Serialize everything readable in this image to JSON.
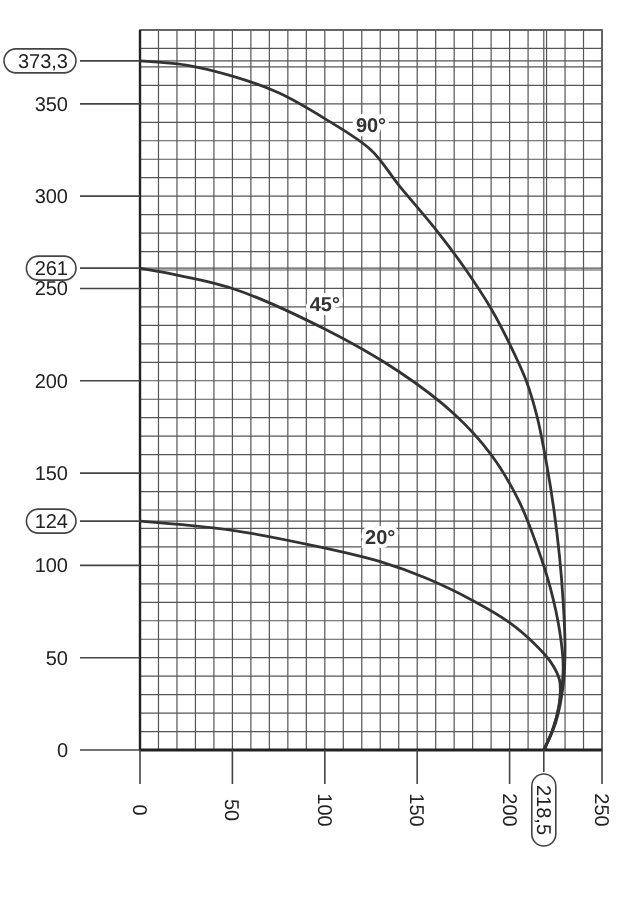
{
  "chart_data": {
    "type": "line",
    "xlim": [
      0,
      250
    ],
    "ylim": [
      0,
      390
    ],
    "grid": true,
    "marker": "none",
    "line_style": "solid",
    "xticks": [
      0,
      {
        "value": 10,
        "label": null
      },
      {
        "value": 20,
        "label": null
      },
      {
        "value": 30,
        "label": null
      },
      {
        "value": 40,
        "label": null
      },
      50,
      {
        "value": 60,
        "label": null
      },
      {
        "value": 70,
        "label": null
      },
      {
        "value": 80,
        "label": null
      },
      {
        "value": 90,
        "label": null
      },
      100,
      {
        "value": 110,
        "label": null
      },
      {
        "value": 120,
        "label": null
      },
      {
        "value": 130,
        "label": null
      },
      {
        "value": 140,
        "label": null
      },
      150,
      {
        "value": 160,
        "label": null
      },
      {
        "value": 170,
        "label": null
      },
      {
        "value": 180,
        "label": null
      },
      {
        "value": 190,
        "label": null
      },
      200,
      {
        "value": 210,
        "label": null
      },
      {
        "value": 218.5,
        "label": "218,5"
      },
      {
        "value": 220,
        "label": null
      },
      {
        "value": 230,
        "label": null
      },
      {
        "value": 240,
        "label": null
      },
      250
    ],
    "yticks": [
      0,
      {
        "value": 10,
        "label": null
      },
      {
        "value": 20,
        "label": null
      },
      {
        "value": 30,
        "label": null
      },
      {
        "value": 40,
        "label": null
      },
      50,
      {
        "value": 60,
        "label": null
      },
      {
        "value": 70,
        "label": null
      },
      {
        "value": 80,
        "label": null
      },
      {
        "value": 90,
        "label": null
      },
      100,
      {
        "value": 110,
        "label": null
      },
      {
        "value": 120,
        "label": null
      },
      {
        "value": 124,
        "label": "124"
      },
      {
        "value": 130,
        "label": null
      },
      {
        "value": 140,
        "label": null
      },
      150,
      {
        "value": 160,
        "label": null
      },
      {
        "value": 170,
        "label": null
      },
      {
        "value": 180,
        "label": null
      },
      {
        "value": 190,
        "label": null
      },
      200,
      {
        "value": 210,
        "label": null
      },
      {
        "value": 220,
        "label": null
      },
      {
        "value": 230,
        "label": null
      },
      {
        "value": 240,
        "label": null
      },
      250,
      {
        "value": 260,
        "label": null
      },
      {
        "value": 261,
        "label": "261"
      },
      {
        "value": 270,
        "label": null
      },
      {
        "value": 280,
        "label": null
      },
      {
        "value": 290,
        "label": null
      },
      300,
      {
        "value": 310,
        "label": null
      },
      {
        "value": 320,
        "label": null
      },
      {
        "value": 330,
        "label": null
      },
      {
        "value": 340,
        "label": null
      },
      350,
      {
        "value": 360,
        "label": null
      },
      {
        "value": 370,
        "label": null
      },
      {
        "value": 373.3,
        "label": "373,3"
      },
      {
        "value": 380,
        "label": null
      },
      {
        "value": 390,
        "label": null
      }
    ],
    "series": [
      {
        "name": "90°",
        "color": "#333333",
        "x": [
          0,
          25,
          50,
          75,
          100,
          125,
          140,
          160,
          175,
          190,
          200,
          209,
          215,
          220,
          224,
          227,
          229,
          230,
          229,
          225,
          218.5
        ],
        "values": [
          373.3,
          371,
          365,
          356,
          342,
          325,
          306,
          282,
          262,
          239,
          220,
          200,
          180,
          155,
          130,
          105,
          80,
          55,
          35,
          15,
          0
        ]
      },
      {
        "name": "45°",
        "color": "#333333",
        "x": [
          0,
          50,
          100,
          140,
          170,
          190,
          205,
          215,
          222,
          227,
          229,
          227,
          223,
          218.5
        ],
        "values": [
          261,
          250,
          228,
          205,
          182,
          160,
          135,
          110,
          88,
          65,
          45,
          25,
          10,
          0
        ]
      },
      {
        "name": "20°",
        "color": "#333333",
        "x": [
          0,
          50,
          97,
          130,
          155,
          180,
          200,
          213,
          222,
          227,
          227,
          224,
          218.5
        ],
        "values": [
          124,
          119,
          110,
          102,
          93,
          81,
          69,
          58,
          48,
          38,
          26,
          13,
          0
        ]
      }
    ]
  }
}
